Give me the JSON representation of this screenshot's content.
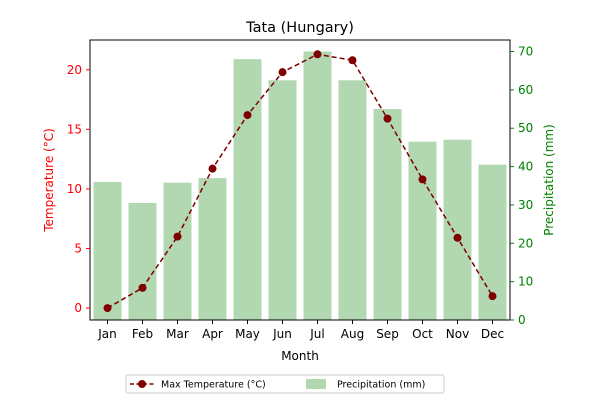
{
  "chart_data": {
    "type": "bar+line",
    "title": "Tata (Hungary)",
    "xlabel": "Month",
    "ylabel_left": "Temperature (°C)",
    "ylabel_right": "Precipitation (mm)",
    "categories": [
      "Jan",
      "Feb",
      "Mar",
      "Apr",
      "May",
      "Jun",
      "Jul",
      "Aug",
      "Sep",
      "Oct",
      "Nov",
      "Dec"
    ],
    "ylim_left": [
      -1,
      22.5
    ],
    "ylim_right": [
      0,
      73
    ],
    "yticks_left": [
      0,
      5,
      10,
      15,
      20
    ],
    "yticks_right": [
      0,
      10,
      20,
      30,
      40,
      50,
      60,
      70
    ],
    "series": [
      {
        "name": "Max Temperature (°C)",
        "kind": "line",
        "axis": "left",
        "values": [
          0.0,
          1.7,
          6.0,
          11.7,
          16.2,
          19.8,
          21.3,
          20.8,
          15.9,
          10.8,
          5.9,
          1.0
        ]
      },
      {
        "name": "Precipitation (mm)",
        "kind": "bar",
        "axis": "right",
        "values": [
          36,
          30.5,
          35.8,
          37,
          68,
          62.5,
          70,
          62.5,
          55,
          46.5,
          47,
          40.5
        ]
      }
    ],
    "colors": {
      "line": "#800000",
      "marker": "#800000",
      "bar": "#b2d8b2",
      "left_axis": "#ff0000",
      "right_axis": "#008000"
    },
    "grid": false,
    "legend_position": "bottom-center"
  }
}
